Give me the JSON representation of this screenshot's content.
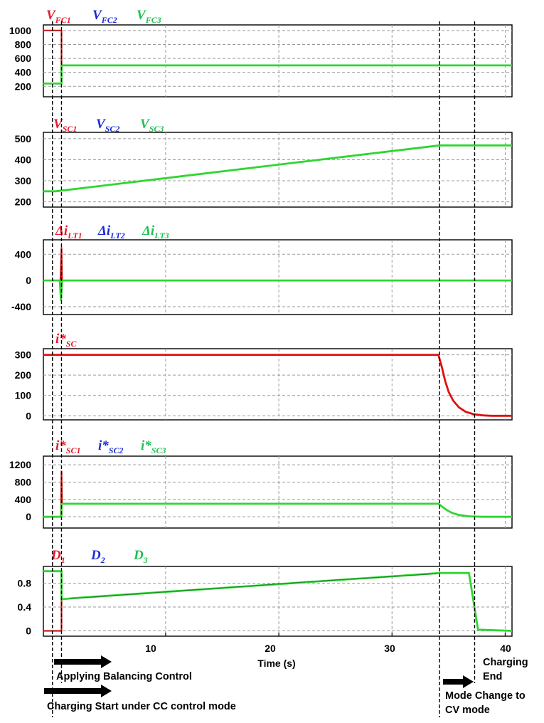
{
  "chart_data": {
    "type": "line",
    "xlabel": "Time (s)",
    "xlim": [
      -0.8,
      40.6
    ],
    "x_ticks": [
      10,
      20,
      30,
      40
    ],
    "panels": [
      {
        "id": "vfc",
        "ylim": [
          50,
          1080
        ],
        "yticks": [
          1000,
          800,
          600,
          400,
          200
        ],
        "legend": [
          {
            "main": "V",
            "sub": "FC1",
            "color": "#e8192c"
          },
          {
            "main": "V",
            "sub": "FC2",
            "color": "#1a2bd6"
          },
          {
            "main": "V",
            "sub": "FC3",
            "color": "#1fbf52"
          }
        ],
        "series": [
          {
            "color": "#c81d1d",
            "width": 2.2,
            "points": [
              [
                -0.8,
                1000
              ],
              [
                0.8,
                1000
              ],
              [
                0.8,
                500
              ],
              [
                4,
                500
              ]
            ]
          },
          {
            "color": "#a0a020",
            "width": 1.6,
            "points": [
              [
                0.8,
                500
              ],
              [
                4,
                500
              ]
            ]
          },
          {
            "color": "#2ed630",
            "width": 2.8,
            "points": [
              [
                -0.8,
                240
              ],
              [
                0.3,
                240
              ],
              [
                0.3,
                240
              ],
              [
                0.8,
                240
              ],
              [
                0.8,
                500
              ],
              [
                40.6,
                500
              ]
            ]
          }
        ]
      },
      {
        "id": "vsc",
        "ylim": [
          175,
          530
        ],
        "yticks": [
          500,
          400,
          300,
          200
        ],
        "legend": [
          {
            "main": "V",
            "sub": "SC1",
            "color": "#e8192c"
          },
          {
            "main": "V",
            "sub": "SC2",
            "color": "#1a2bd6"
          },
          {
            "main": "V",
            "sub": "SC3",
            "color": "#1fbf52"
          }
        ],
        "series": [
          {
            "color": "#2ed630",
            "width": 2.8,
            "points": [
              [
                -0.8,
                250
              ],
              [
                0.3,
                250
              ],
              [
                34.2,
                468
              ],
              [
                40.6,
                468
              ]
            ]
          }
        ]
      },
      {
        "id": "dilt",
        "ylim": [
          -520,
          620
        ],
        "yticks": [
          400,
          0,
          -400
        ],
        "legend": [
          {
            "main": "Δi",
            "sub": "LT1",
            "color": "#e8192c"
          },
          {
            "main": "Δi",
            "sub": "LT2",
            "color": "#1a2bd6"
          },
          {
            "main": "Δi",
            "sub": "LT3",
            "color": "#1fbf52"
          }
        ],
        "series": [
          {
            "color": "#c81d1d",
            "width": 2.2,
            "points": [
              [
                0.7,
                0
              ],
              [
                0.8,
                500
              ],
              [
                0.85,
                0
              ]
            ]
          },
          {
            "color": "#2ed630",
            "width": 2.8,
            "points": [
              [
                -0.8,
                0
              ],
              [
                0.65,
                0
              ],
              [
                0.75,
                -300
              ],
              [
                0.85,
                0
              ],
              [
                40.6,
                0
              ]
            ]
          }
        ]
      },
      {
        "id": "isc",
        "ylim": [
          -20,
          330
        ],
        "yticks": [
          300,
          200,
          100,
          0
        ],
        "legend": [
          {
            "main": "i*",
            "sub": "SC",
            "color": "#e8192c"
          }
        ],
        "series": [
          {
            "color": "#e01010",
            "width": 2.8,
            "points": [
              [
                -0.8,
                300
              ],
              [
                34.1,
                300
              ],
              [
                34.4,
                240
              ],
              [
                34.7,
                170
              ],
              [
                35.0,
                118
              ],
              [
                35.4,
                75
              ],
              [
                35.9,
                42
              ],
              [
                36.5,
                20
              ],
              [
                37.2,
                8
              ],
              [
                38.0,
                2
              ],
              [
                38.8,
                0
              ],
              [
                40.6,
                0
              ]
            ]
          }
        ]
      },
      {
        "id": "isc_ref",
        "ylim": [
          -260,
          1400
        ],
        "yticks": [
          1200,
          800,
          400,
          0
        ],
        "legend": [
          {
            "main": "i*",
            "sub": "SC1",
            "color": "#e8192c"
          },
          {
            "main": "i*",
            "sub": "SC2",
            "color": "#1a2bd6"
          },
          {
            "main": "i*",
            "sub": "SC3",
            "color": "#1fbf52"
          }
        ],
        "series": [
          {
            "color": "#c81d1d",
            "width": 2.2,
            "points": [
              [
                0.75,
                0
              ],
              [
                0.8,
                1050
              ],
              [
                0.85,
                300
              ]
            ]
          },
          {
            "color": "#2ed630",
            "width": 2.8,
            "points": [
              [
                -0.8,
                0
              ],
              [
                0.8,
                0
              ],
              [
                0.8,
                300
              ],
              [
                34.1,
                300
              ],
              [
                34.4,
                240
              ],
              [
                34.8,
                160
              ],
              [
                35.3,
                90
              ],
              [
                35.9,
                40
              ],
              [
                36.8,
                10
              ],
              [
                38.0,
                0
              ],
              [
                40.6,
                0
              ]
            ]
          }
        ]
      },
      {
        "id": "duty",
        "ylim": [
          -0.09,
          1.08
        ],
        "yticks": [
          0.8,
          0.4,
          0
        ],
        "ytick_labels": [
          "0.8",
          "0.4",
          "0"
        ],
        "legend": [
          {
            "main": "D",
            "sub": "1",
            "color": "#e8192c"
          },
          {
            "main": "D",
            "sub": "2",
            "color": "#1a2bd6"
          },
          {
            "main": "D",
            "sub": "3",
            "color": "#1fbf52"
          }
        ],
        "series": [
          {
            "color": "#c81d1d",
            "width": 2.2,
            "points": [
              [
                -0.8,
                0
              ],
              [
                0.8,
                0
              ],
              [
                0.8,
                0.55
              ]
            ]
          },
          {
            "color": "#2ed630",
            "width": 2.8,
            "points": [
              [
                -0.8,
                1.0
              ],
              [
                0.8,
                1.0
              ],
              [
                0.8,
                0.53
              ],
              [
                2,
                0.55
              ],
              [
                34.3,
                0.97
              ],
              [
                36.8,
                0.97
              ],
              [
                37.6,
                0.02
              ],
              [
                40.6,
                0
              ]
            ]
          },
          {
            "color": "#1a7a2a",
            "width": 0.9,
            "points": [
              [
                1.5,
                0.54
              ],
              [
                6,
                0.6
              ],
              [
                12,
                0.68
              ],
              [
                18,
                0.76
              ],
              [
                24,
                0.84
              ],
              [
                30,
                0.91
              ],
              [
                34,
                0.96
              ]
            ]
          }
        ]
      }
    ],
    "events": [
      0.0,
      0.8,
      34.2,
      37.3
    ],
    "annotations": {
      "balancing": "Applying Balancing Control",
      "charging_start": "Charging Start under CC control mode",
      "charging_end_1": "Charging",
      "charging_end_2": "End",
      "mode_change_1": "Mode Change to",
      "mode_change_2": "CV mode"
    }
  }
}
